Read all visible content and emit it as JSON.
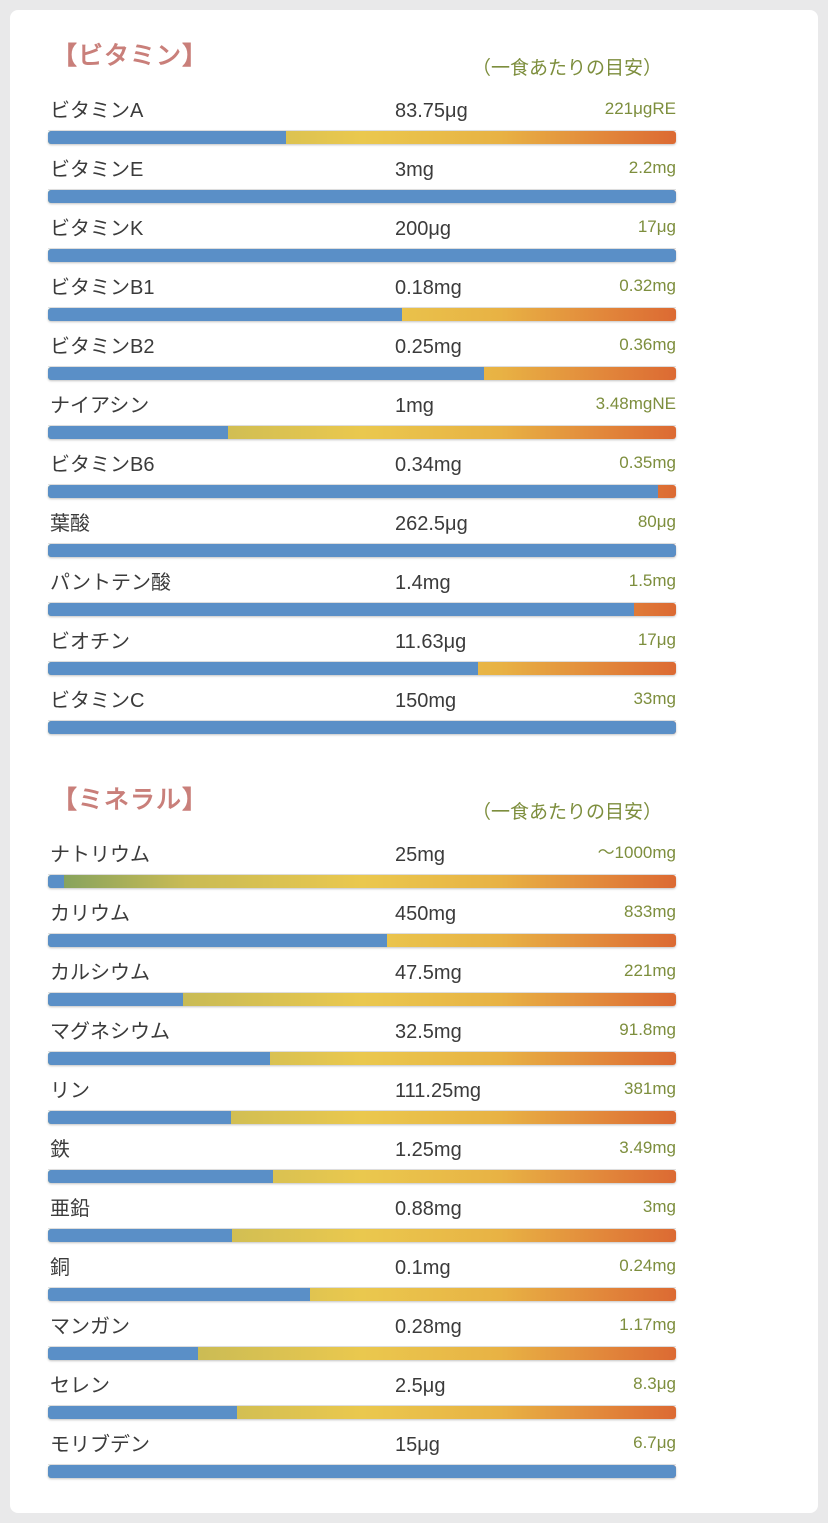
{
  "colors": {
    "page_background": "#e9e9ea",
    "card_background": "#ffffff",
    "section_title": "#c97f7a",
    "reference_text": "#7d8e3d",
    "body_text": "#3b3b3b",
    "bar_fill_blue": "#5a8fc7",
    "bar_track_gradient": [
      "#7fa05e",
      "#eac84e",
      "#dc6a33"
    ]
  },
  "chart_data": [
    {
      "type": "bar",
      "title": "【ビタミン】",
      "subtitle": "（一食あたりの目安）",
      "categories": [
        "ビタミンA",
        "ビタミンE",
        "ビタミンK",
        "ビタミンB1",
        "ビタミンB2",
        "ナイアシン",
        "ビタミンB6",
        "葉酸",
        "パントテン酸",
        "ビオチン",
        "ビタミンC"
      ],
      "amounts": [
        "83.75μg",
        "3mg",
        "200μg",
        "0.18mg",
        "0.25mg",
        "1mg",
        "0.34mg",
        "262.5μg",
        "1.4mg",
        "11.63μg",
        "150mg"
      ],
      "references": [
        "221μgRE",
        "2.2mg",
        "17μg",
        "0.32mg",
        "0.36mg",
        "3.48mgNE",
        "0.35mg",
        "80μg",
        "1.5mg",
        "17μg",
        "33mg"
      ],
      "fill_percent": [
        37.9,
        100,
        100,
        56.3,
        69.4,
        28.7,
        97.1,
        100,
        93.3,
        68.4,
        100
      ],
      "xlim": [
        0,
        100
      ],
      "legend": "none",
      "grid": false
    },
    {
      "type": "bar",
      "title": "【ミネラル】",
      "subtitle": "（一食あたりの目安）",
      "categories": [
        "ナトリウム",
        "カリウム",
        "カルシウム",
        "マグネシウム",
        "リン",
        "鉄",
        "亜鉛",
        "銅",
        "マンガン",
        "セレン",
        "モリブデン"
      ],
      "amounts": [
        "25mg",
        "450mg",
        "47.5mg",
        "32.5mg",
        "111.25mg",
        "1.25mg",
        "0.88mg",
        "0.1mg",
        "0.28mg",
        "2.5μg",
        "15μg"
      ],
      "references": [
        "～1000mg",
        "833mg",
        "221mg",
        "91.8mg",
        "381mg",
        "3.49mg",
        "3mg",
        "0.24mg",
        "1.17mg",
        "8.3μg",
        "6.7μg"
      ],
      "fill_percent": [
        2.5,
        54.0,
        21.5,
        35.4,
        29.2,
        35.8,
        29.3,
        41.7,
        23.9,
        30.1,
        100
      ],
      "xlim": [
        0,
        100
      ],
      "legend": "none",
      "grid": false
    }
  ]
}
